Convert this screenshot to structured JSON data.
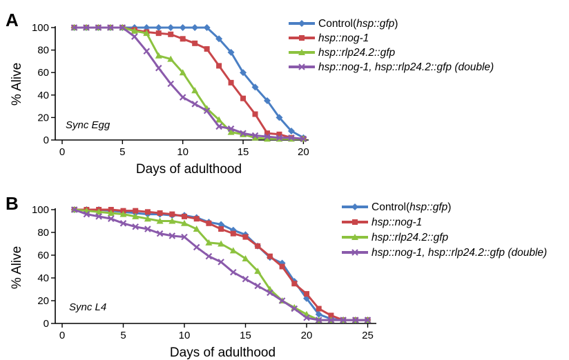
{
  "colors": {
    "control": "#4a7fc4",
    "nog1": "#c8464a",
    "rlp": "#8cc23f",
    "double": "#8a5aab"
  },
  "chart_data": [
    {
      "type": "line",
      "panel": "A",
      "annotation": "Sync Egg",
      "xlabel": "Days of adulthood",
      "ylabel": "% Alive",
      "xlim": [
        0,
        21
      ],
      "ylim": [
        0,
        100
      ],
      "xticks": [
        0,
        5,
        10,
        15,
        20
      ],
      "yticks": [
        0,
        20,
        40,
        60,
        80,
        100
      ],
      "legend_position": "top-right",
      "series": [
        {
          "key": "control",
          "marker": "diamond",
          "legend_plain": "Control(",
          "legend_italic": "hsp::gfp",
          "legend_suffix": ")",
          "x": [
            1,
            2,
            3,
            4,
            5,
            6,
            7,
            8,
            9,
            10,
            11,
            12,
            13,
            14,
            15,
            16,
            17,
            18,
            19,
            20
          ],
          "y": [
            100,
            100,
            100,
            100,
            100,
            100,
            100,
            100,
            100,
            100,
            100,
            100,
            90,
            78,
            60,
            47,
            35,
            20,
            8,
            2
          ]
        },
        {
          "key": "nog1",
          "marker": "square",
          "legend_plain": "",
          "legend_italic": "hsp::nog-1",
          "legend_suffix": "",
          "x": [
            1,
            2,
            3,
            4,
            5,
            6,
            7,
            8,
            9,
            10,
            11,
            12,
            13,
            14,
            15,
            16,
            17,
            18,
            19,
            20
          ],
          "y": [
            100,
            100,
            100,
            100,
            100,
            98,
            96,
            95,
            94,
            90,
            86,
            81,
            66,
            51,
            37,
            23,
            6,
            5,
            2,
            1
          ]
        },
        {
          "key": "rlp",
          "marker": "triangle",
          "legend_plain": "",
          "legend_italic": "hsp::rlp24.2::gfp",
          "legend_suffix": "",
          "x": [
            1,
            2,
            3,
            4,
            5,
            6,
            7,
            8,
            9,
            10,
            11,
            12,
            13,
            14,
            15,
            16,
            17,
            18,
            19,
            20
          ],
          "y": [
            100,
            100,
            100,
            100,
            100,
            97,
            95,
            75,
            72,
            60,
            44,
            28,
            18,
            7,
            5,
            2,
            1,
            1,
            1,
            1
          ]
        },
        {
          "key": "double",
          "marker": "x",
          "legend_plain": "",
          "legend_italic": "hsp::nog-1, hsp::rlp24.2::gfp (double)",
          "legend_suffix": "",
          "x": [
            1,
            2,
            3,
            4,
            5,
            6,
            7,
            8,
            9,
            10,
            11,
            12,
            13,
            14,
            15,
            16,
            17,
            18,
            19,
            20
          ],
          "y": [
            100,
            100,
            100,
            100,
            100,
            92,
            79,
            64,
            50,
            38,
            32,
            26,
            12,
            10,
            6,
            4,
            3,
            2,
            2,
            1
          ]
        }
      ]
    },
    {
      "type": "line",
      "panel": "B",
      "annotation": "Sync L4",
      "xlabel": "Days of adulthood",
      "ylabel": "% Alive",
      "xlim": [
        0,
        26
      ],
      "ylim": [
        0,
        100
      ],
      "xticks": [
        0,
        5,
        10,
        15,
        20,
        25
      ],
      "yticks": [
        0,
        20,
        40,
        60,
        80,
        100
      ],
      "legend_position": "top-right",
      "series": [
        {
          "key": "control",
          "marker": "diamond",
          "legend_plain": "Control(",
          "legend_italic": "hsp::gfp",
          "legend_suffix": ")",
          "x": [
            1,
            2,
            3,
            4,
            5,
            6,
            7,
            8,
            9,
            10,
            11,
            12,
            13,
            14,
            15,
            16,
            17,
            18,
            19,
            20,
            21,
            22,
            23,
            24,
            25
          ],
          "y": [
            100,
            100,
            100,
            99,
            98,
            97,
            96,
            96,
            95,
            95,
            93,
            89,
            87,
            82,
            78,
            68,
            58,
            53,
            37,
            22,
            8,
            4,
            3,
            3,
            3
          ]
        },
        {
          "key": "nog1",
          "marker": "square",
          "legend_plain": "",
          "legend_italic": "hsp::nog-1",
          "legend_suffix": "",
          "x": [
            1,
            2,
            3,
            4,
            5,
            6,
            7,
            8,
            9,
            10,
            11,
            12,
            13,
            14,
            15,
            16,
            17,
            18,
            19,
            20,
            21,
            22,
            23,
            24,
            25
          ],
          "y": [
            100,
            100,
            100,
            100,
            99,
            99,
            98,
            97,
            96,
            94,
            92,
            88,
            83,
            79,
            76,
            68,
            59,
            50,
            35,
            26,
            13,
            7,
            3,
            3,
            3
          ]
        },
        {
          "key": "rlp",
          "marker": "triangle",
          "legend_plain": "",
          "legend_italic": "hsp::rlp24.2::gfp",
          "legend_suffix": "",
          "x": [
            1,
            2,
            3,
            4,
            5,
            6,
            7,
            8,
            9,
            10,
            11,
            12,
            13,
            14,
            15,
            16,
            17,
            18,
            19,
            20,
            21,
            22,
            23,
            24,
            25
          ],
          "y": [
            100,
            99,
            98,
            97,
            96,
            94,
            92,
            90,
            90,
            88,
            83,
            71,
            70,
            64,
            57,
            46,
            30,
            20,
            14,
            8,
            3,
            3,
            3,
            3,
            3
          ]
        },
        {
          "key": "double",
          "marker": "x",
          "legend_plain": "",
          "legend_italic": "hsp::nog-1, hsp::rlp24.2::gfp (double)",
          "legend_suffix": "",
          "x": [
            1,
            2,
            3,
            4,
            5,
            6,
            7,
            8,
            9,
            10,
            11,
            12,
            13,
            14,
            15,
            16,
            17,
            18,
            19,
            20,
            21,
            22,
            23,
            24,
            25
          ],
          "y": [
            100,
            96,
            94,
            92,
            88,
            85,
            83,
            79,
            77,
            76,
            67,
            59,
            54,
            45,
            39,
            33,
            27,
            20,
            13,
            5,
            3,
            3,
            3,
            3,
            3
          ]
        }
      ]
    }
  ]
}
